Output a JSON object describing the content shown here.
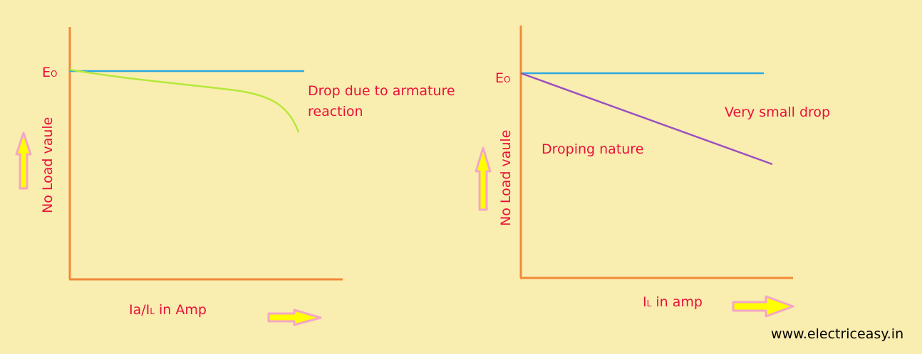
{
  "colors": {
    "background": "#FAEDB0",
    "axis": "#F08A3A",
    "no_load_line": "#2AA8E0",
    "curve_left": "#B5E83A",
    "curve_right": "#9B4FBF",
    "label_text": "#E8113A",
    "arrow_fill": "#FFFF00",
    "arrow_outline": "#F4A6C6",
    "watermark": "#000000"
  },
  "left_graph": {
    "eo_main": "E",
    "eo_sub": "O",
    "y_axis_label": "No Load vaule",
    "curve_label_line1": "Drop due to armature",
    "curve_label_line2": "reaction",
    "x_axis_label_main": "Ia/I",
    "x_axis_label_sub": "L",
    "x_axis_label_rest": " in Amp",
    "up_arrow_icon": "up-arrow-icon",
    "right_arrow_icon": "right-arrow-icon"
  },
  "right_graph": {
    "eo_main": "E",
    "eo_sub": "O",
    "y_axis_label": "No Load vaule",
    "drop_label": "Very small drop",
    "nature_label": "Droping nature",
    "x_axis_label_main": "I",
    "x_axis_label_sub": "L",
    "x_axis_label_rest": " in amp",
    "up_arrow_icon": "up-arrow-icon",
    "right_arrow_icon": "right-arrow-icon"
  },
  "watermark": "www.electriceasy.in"
}
